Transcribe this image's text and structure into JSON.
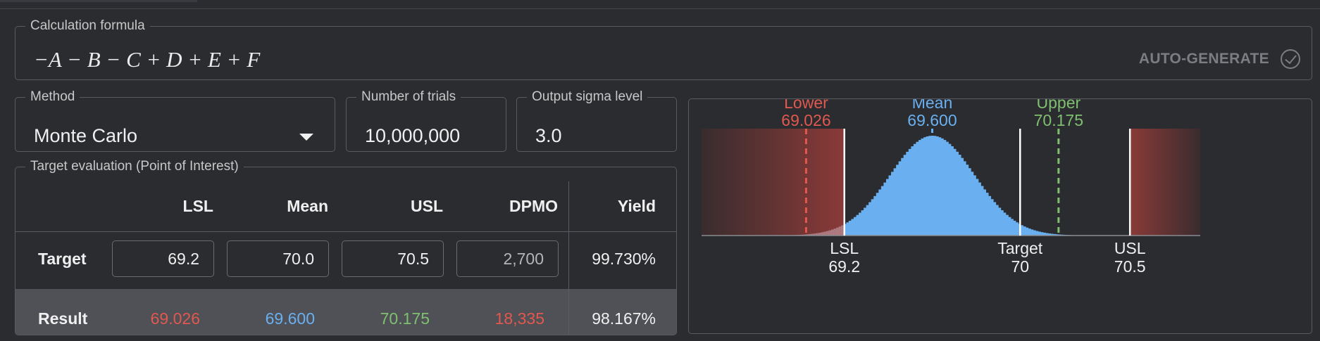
{
  "formula": {
    "legend": "Calculation formula",
    "expression": "−A − B − C + D + E + F",
    "auto_generate_label": "AUTO-GENERATE"
  },
  "method": {
    "legend": "Method",
    "value": "Monte Carlo"
  },
  "trials": {
    "legend": "Number of trials",
    "value": "10,000,000"
  },
  "sigma": {
    "legend": "Output sigma level",
    "value": "3.0"
  },
  "evaluation": {
    "legend": "Target evaluation (Point of Interest)",
    "headers": {
      "lsl": "LSL",
      "mean": "Mean",
      "usl": "USL",
      "dpmo": "DPMO",
      "yield": "Yield"
    },
    "target": {
      "label": "Target",
      "lsl": "69.2",
      "mean": "70.0",
      "usl": "70.5",
      "dpmo": "2,700",
      "yield": "99.730%"
    },
    "result": {
      "label": "Result",
      "lsl": "69.026",
      "mean": "69.600",
      "usl": "70.175",
      "dpmo": "18,335",
      "yield": "98.167%"
    }
  },
  "colors": {
    "background": "#2b2c30",
    "lower": "#e0584e",
    "mean": "#6ab0f0",
    "upper": "#7fbf70",
    "histogram": "#6ab0f0",
    "reject_zone": "#8a3a38"
  },
  "chart_data": {
    "type": "bar",
    "distribution": {
      "mean": 69.6,
      "sigma": 0.1917
    },
    "xlim": [
      68.55,
      70.82
    ],
    "markers": [
      {
        "label": "Lower",
        "value_label": "69.026",
        "value": 69.026,
        "style": "dashed",
        "color": "#e0584e"
      },
      {
        "label": "Mean",
        "value_label": "69.600",
        "value": 69.6,
        "style": "tick",
        "color": "#6ab0f0"
      },
      {
        "label": "Upper",
        "value_label": "70.175",
        "value": 70.175,
        "style": "dashed",
        "color": "#7fbf70"
      }
    ],
    "limits": [
      {
        "label": "LSL",
        "value_label": "69.2",
        "value": 69.2
      },
      {
        "label": "Target",
        "value_label": "70",
        "value": 70.0
      },
      {
        "label": "USL",
        "value_label": "70.5",
        "value": 70.5
      }
    ]
  }
}
